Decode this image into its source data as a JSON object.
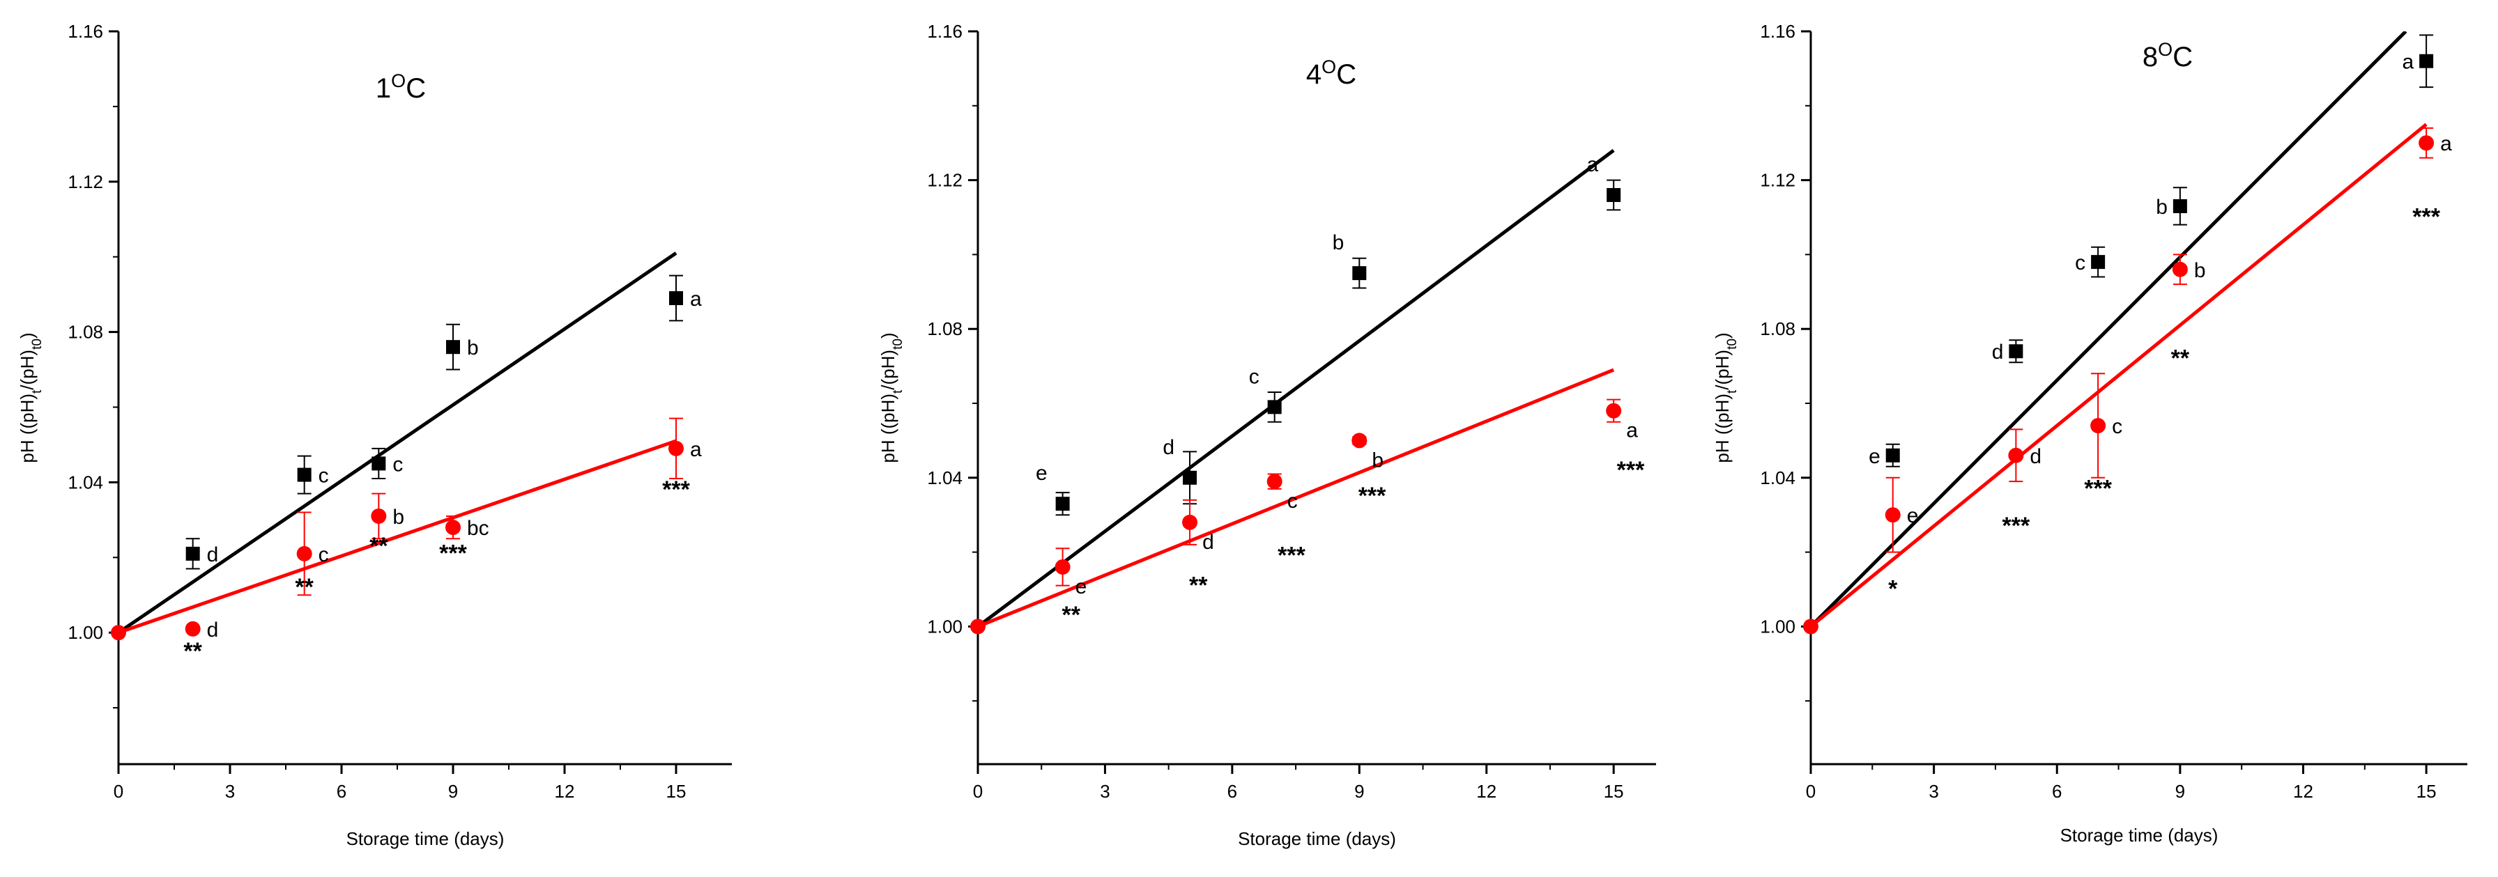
{
  "chart_data": [
    {
      "type": "scatter",
      "title": "1",
      "title_superscript": "O",
      "title_unit": "C",
      "xlabel": "Storage time (days)",
      "ylabel_parts": [
        "pH ((pH)",
        "t",
        "/(pH)",
        "t0",
        ")"
      ],
      "xlim": [
        0,
        16.5
      ],
      "ylim": [
        0.965,
        1.16
      ],
      "x_ticks": [
        0,
        3,
        6,
        9,
        12,
        15
      ],
      "x_tick_labels": [
        "0",
        "3",
        "6",
        "9",
        "12",
        "15"
      ],
      "y_ticks": [
        1.0,
        1.04,
        1.08,
        1.12,
        1.16
      ],
      "y_tick_labels": [
        "1.00",
        "1.04",
        "1.08",
        "1.12",
        "1.16"
      ],
      "series": [
        {
          "name": "black",
          "color": "#000000",
          "marker": "square",
          "points": [
            {
              "x": 2,
              "y": 1.021,
              "err": 0.004,
              "label": "d",
              "label_pos": "right"
            },
            {
              "x": 5,
              "y": 1.042,
              "err": 0.005,
              "label": "c",
              "label_pos": "right"
            },
            {
              "x": 7,
              "y": 1.045,
              "err": 0.004,
              "label": "c",
              "label_pos": "right"
            },
            {
              "x": 9,
              "y": 1.076,
              "err": 0.006,
              "label": "b",
              "label_pos": "right"
            },
            {
              "x": 15,
              "y": 1.089,
              "err": 0.006,
              "label": "a",
              "label_pos": "right"
            }
          ],
          "fit_line": {
            "x": [
              0,
              15
            ],
            "y": [
              1.0,
              1.101
            ]
          }
        },
        {
          "name": "red",
          "color": "#ff0000",
          "marker": "circle",
          "points": [
            {
              "x": 0,
              "y": 1.0,
              "err": 0
            },
            {
              "x": 2,
              "y": 1.001,
              "err": 0,
              "label": "d",
              "label_pos": "right"
            },
            {
              "x": 5,
              "y": 1.021,
              "err": 0.011,
              "label": "c",
              "label_pos": "right"
            },
            {
              "x": 7,
              "y": 1.031,
              "err": 0.006,
              "label": "b",
              "label_pos": "right"
            },
            {
              "x": 9,
              "y": 1.028,
              "err": 0.003,
              "label": "bc",
              "label_pos": "right"
            },
            {
              "x": 15,
              "y": 1.049,
              "err": 0.008,
              "label": "a",
              "label_pos": "right"
            }
          ],
          "fit_line": {
            "x": [
              0,
              15
            ],
            "y": [
              1.0,
              1.051
            ]
          }
        }
      ],
      "significance": [
        {
          "x": 2,
          "y": 0.993,
          "text": "**"
        },
        {
          "x": 5,
          "y": 1.01,
          "text": "**"
        },
        {
          "x": 7,
          "y": 1.021,
          "text": "**"
        },
        {
          "x": 9,
          "y": 1.019,
          "text": "***"
        },
        {
          "x": 15,
          "y": 1.036,
          "text": "***"
        }
      ]
    },
    {
      "type": "scatter",
      "title": "4",
      "title_superscript": "O",
      "title_unit": "C",
      "xlabel": "Storage time (days)",
      "ylabel_parts": [
        "pH ((pH)",
        "t",
        "/(pH)",
        "t0",
        ")"
      ],
      "xlim": [
        0,
        16
      ],
      "ylim": [
        0.963,
        1.16
      ],
      "x_ticks": [
        0,
        3,
        6,
        9,
        12,
        15
      ],
      "x_tick_labels": [
        "0",
        "3",
        "6",
        "9",
        "12",
        "15"
      ],
      "y_ticks": [
        1.0,
        1.04,
        1.08,
        1.12,
        1.16
      ],
      "y_tick_labels": [
        "1.00",
        "1.04",
        "1.08",
        "1.12",
        "1.16"
      ],
      "series": [
        {
          "name": "black",
          "color": "#000000",
          "marker": "square",
          "points": [
            {
              "x": 2,
              "y": 1.033,
              "err": 0.003,
              "label": "e",
              "label_pos": "upper-left"
            },
            {
              "x": 5,
              "y": 1.04,
              "err": 0.007,
              "label": "d",
              "label_pos": "upper-left"
            },
            {
              "x": 7,
              "y": 1.059,
              "err": 0.004,
              "label": "c",
              "label_pos": "upper-left"
            },
            {
              "x": 9,
              "y": 1.095,
              "err": 0.004,
              "label": "b",
              "label_pos": "upper-left"
            },
            {
              "x": 15,
              "y": 1.116,
              "err": 0.004,
              "label": "a",
              "label_pos": "upper-left"
            }
          ],
          "fit_line": {
            "x": [
              0,
              15
            ],
            "y": [
              1.0,
              1.128
            ]
          }
        },
        {
          "name": "red",
          "color": "#ff0000",
          "marker": "circle",
          "points": [
            {
              "x": 0,
              "y": 1.0,
              "err": 0
            },
            {
              "x": 2,
              "y": 1.016,
              "err": 0.005,
              "label": "e",
              "label_pos": "lower-right"
            },
            {
              "x": 5,
              "y": 1.028,
              "err": 0.006,
              "label": "d",
              "label_pos": "lower-right"
            },
            {
              "x": 7,
              "y": 1.039,
              "err": 0.002,
              "label": "c",
              "label_pos": "lower-right"
            },
            {
              "x": 9,
              "y": 1.05,
              "err": 0.001,
              "label": "b",
              "label_pos": "lower-right"
            },
            {
              "x": 15,
              "y": 1.058,
              "err": 0.003,
              "label": "a",
              "label_pos": "lower-right"
            }
          ],
          "fit_line": {
            "x": [
              0,
              15
            ],
            "y": [
              1.0,
              1.069
            ]
          }
        }
      ],
      "significance": [
        {
          "x": 2.2,
          "y": 1.001,
          "text": "**"
        },
        {
          "x": 5.2,
          "y": 1.009,
          "text": "**"
        },
        {
          "x": 7.4,
          "y": 1.017,
          "text": "***"
        },
        {
          "x": 9.3,
          "y": 1.033,
          "text": "***"
        },
        {
          "x": 15.4,
          "y": 1.04,
          "text": "***"
        }
      ]
    },
    {
      "type": "scatter",
      "title": "8",
      "title_superscript": "O",
      "title_unit": "C",
      "xlabel": "Storage time (days)",
      "ylabel_parts": [
        "pH ((pH)",
        "t",
        "/(pH)",
        "t0",
        ")"
      ],
      "xlim": [
        0,
        16
      ],
      "ylim": [
        0.963,
        1.16
      ],
      "x_ticks": [
        0,
        3,
        6,
        9,
        12,
        15
      ],
      "x_tick_labels": [
        "0",
        "3",
        "6",
        "9",
        "12",
        "15"
      ],
      "y_ticks": [
        1.0,
        1.04,
        1.08,
        1.12,
        1.16
      ],
      "y_tick_labels": [
        "1.00",
        "1.04",
        "1.08",
        "1.12",
        "1.16"
      ],
      "series": [
        {
          "name": "black",
          "color": "#000000",
          "marker": "square",
          "points": [
            {
              "x": 2,
              "y": 1.046,
              "err": 0.003,
              "label": "e",
              "label_pos": "left"
            },
            {
              "x": 5,
              "y": 1.074,
              "err": 0.003,
              "label": "d",
              "label_pos": "left"
            },
            {
              "x": 7,
              "y": 1.098,
              "err": 0.004,
              "label": "c",
              "label_pos": "left"
            },
            {
              "x": 9,
              "y": 1.113,
              "err": 0.005,
              "label": "b",
              "label_pos": "left"
            },
            {
              "x": 15,
              "y": 1.152,
              "err": 0.007,
              "label": "a",
              "label_pos": "left"
            }
          ],
          "fit_line": {
            "x": [
              0,
              14.5
            ],
            "y": [
              1.0,
              1.16
            ]
          }
        },
        {
          "name": "red",
          "color": "#ff0000",
          "marker": "circle",
          "points": [
            {
              "x": 0,
              "y": 1.0,
              "err": 0
            },
            {
              "x": 2,
              "y": 1.03,
              "err": 0.01,
              "label": "e",
              "label_pos": "right"
            },
            {
              "x": 5,
              "y": 1.046,
              "err": 0.007,
              "label": "d",
              "label_pos": "right"
            },
            {
              "x": 7,
              "y": 1.054,
              "err": 0.014,
              "label": "c",
              "label_pos": "right"
            },
            {
              "x": 9,
              "y": 1.096,
              "err": 0.004,
              "label": "b",
              "label_pos": "right"
            },
            {
              "x": 15,
              "y": 1.13,
              "err": 0.004,
              "label": "a",
              "label_pos": "right"
            }
          ],
          "fit_line": {
            "x": [
              0,
              15
            ],
            "y": [
              1.0,
              1.135
            ]
          }
        }
      ],
      "significance": [
        {
          "x": 2,
          "y": 1.008,
          "text": "*"
        },
        {
          "x": 5,
          "y": 1.025,
          "text": "***"
        },
        {
          "x": 7,
          "y": 1.035,
          "text": "***"
        },
        {
          "x": 9,
          "y": 1.07,
          "text": "**"
        },
        {
          "x": 15,
          "y": 1.108,
          "text": "***"
        }
      ]
    }
  ]
}
